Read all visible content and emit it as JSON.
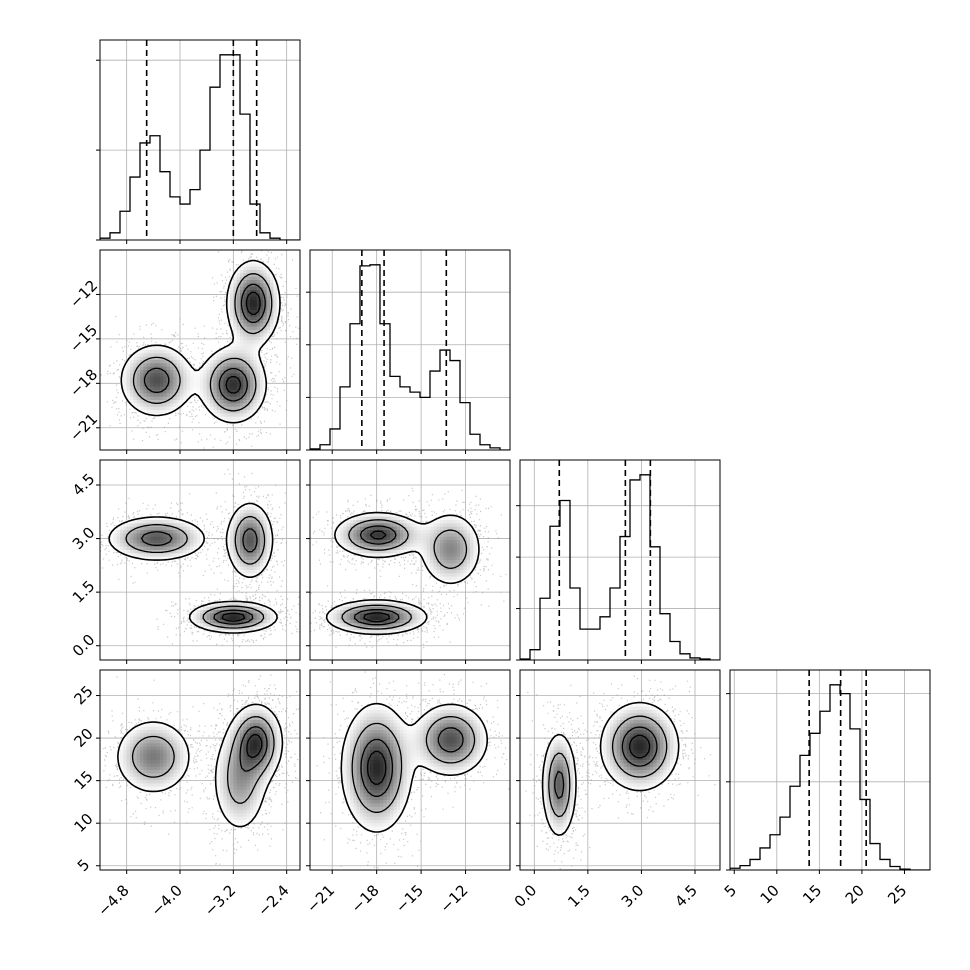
{
  "chart_data": {
    "type": "corner",
    "grid": true,
    "parameters": [
      {
        "range": [
          -5.2,
          -2.2
        ],
        "ticks": [
          -4.8,
          -4.0,
          -3.2,
          -2.4
        ],
        "tick_labels": [
          "−4.8",
          "−4.0",
          "−3.2",
          "−2.4"
        ],
        "quantiles": [
          -4.5,
          -3.2,
          -2.85
        ],
        "hist_edges_start": -5.2,
        "hist_bin_width": 0.15,
        "hist_counts": [
          1,
          4,
          16,
          35,
          54,
          58,
          38,
          24,
          20,
          28,
          50,
          85,
          103,
          103,
          70,
          20,
          4,
          1,
          0,
          0
        ]
      },
      {
        "range": [
          -22.5,
          -9.0
        ],
        "ticks": [
          -21,
          -18,
          -15,
          -12
        ],
        "tick_labels": [
          "−21",
          "−18",
          "−15",
          "−12"
        ],
        "quantiles": [
          -19.0,
          -17.5,
          -13.3
        ],
        "hist_edges_start": -22.5,
        "hist_bin_width": 0.675,
        "hist_counts": [
          1,
          5,
          20,
          60,
          120,
          175,
          176,
          120,
          70,
          60,
          55,
          50,
          75,
          95,
          85,
          45,
          15,
          5,
          2,
          0
        ]
      },
      {
        "range": [
          -0.4,
          5.2
        ],
        "ticks": [
          0.0,
          1.5,
          3.0,
          4.5
        ],
        "tick_labels": [
          "0.0",
          "1.5",
          "3.0",
          "4.5"
        ],
        "quantiles": [
          0.7,
          2.55,
          3.25
        ],
        "hist_edges_start": -0.4,
        "hist_bin_width": 0.28,
        "hist_counts": [
          1,
          10,
          60,
          130,
          155,
          70,
          30,
          30,
          42,
          70,
          120,
          175,
          180,
          110,
          45,
          18,
          6,
          2,
          1,
          0
        ]
      },
      {
        "range": [
          4.5,
          28.0
        ],
        "ticks": [
          5,
          10,
          15,
          20,
          25
        ],
        "tick_labels": [
          "5",
          "10",
          "15",
          "20",
          "25"
        ],
        "quantiles": [
          13.8,
          17.5,
          20.5
        ],
        "hist_edges_start": 4.5,
        "hist_bin_width": 1.175,
        "hist_counts": [
          2,
          5,
          12,
          25,
          40,
          60,
          95,
          130,
          155,
          180,
          210,
          200,
          160,
          80,
          30,
          12,
          4,
          1,
          0,
          0
        ]
      }
    ],
    "hist_ticks_y": [
      [
        0,
        50,
        100
      ],
      [
        0,
        50,
        100,
        150
      ],
      [
        0,
        50,
        100,
        150
      ],
      [
        0,
        100,
        200
      ]
    ],
    "pairs": [
      {
        "row": 1,
        "col": 0,
        "modes": [
          {
            "cx": -4.35,
            "cy": -17.8,
            "sx": 0.28,
            "sy": 1.25,
            "angle": 25,
            "density": 1.0
          },
          {
            "cx": -3.2,
            "cy": -18.1,
            "sx": 0.25,
            "sy": 1.3,
            "angle": 30,
            "density": 1.15
          },
          {
            "cx": -2.9,
            "cy": -12.6,
            "sx": 0.2,
            "sy": 1.45,
            "angle": -10,
            "density": 1.2
          }
        ]
      },
      {
        "row": 2,
        "col": 0,
        "modes": [
          {
            "cx": -4.35,
            "cy": 3.0,
            "sx": 0.38,
            "sy": 0.32,
            "angle": -25,
            "density": 1.0
          },
          {
            "cx": -3.2,
            "cy": 0.8,
            "sx": 0.33,
            "sy": 0.22,
            "angle": 0,
            "density": 1.25
          },
          {
            "cx": -2.95,
            "cy": 2.95,
            "sx": 0.18,
            "sy": 0.55,
            "angle": 5,
            "density": 1.0
          }
        ]
      },
      {
        "row": 2,
        "col": 1,
        "modes": [
          {
            "cx": -17.9,
            "cy": 3.1,
            "sx": 1.5,
            "sy": 0.32,
            "angle": 0,
            "density": 1.2
          },
          {
            "cx": -18.0,
            "cy": 0.8,
            "sx": 1.7,
            "sy": 0.24,
            "angle": 0,
            "density": 1.3
          },
          {
            "cx": -13.0,
            "cy": 2.7,
            "sx": 1.1,
            "sy": 0.55,
            "angle": -15,
            "density": 0.8
          }
        ]
      },
      {
        "row": 3,
        "col": 0,
        "modes": [
          {
            "cx": -4.4,
            "cy": 17.8,
            "sx": 0.3,
            "sy": 2.3,
            "angle": 30,
            "density": 1.0
          },
          {
            "cx": -3.1,
            "cy": 15.0,
            "sx": 0.22,
            "sy": 3.3,
            "angle": 0,
            "density": 0.8
          },
          {
            "cx": -2.85,
            "cy": 19.5,
            "sx": 0.2,
            "sy": 2.3,
            "angle": 0,
            "density": 1.3
          }
        ]
      },
      {
        "row": 3,
        "col": 1,
        "modes": [
          {
            "cx": -18.0,
            "cy": 16.5,
            "sx": 1.2,
            "sy": 3.8,
            "angle": 0,
            "density": 1.2
          },
          {
            "cx": -13.0,
            "cy": 19.8,
            "sx": 1.3,
            "sy": 2.2,
            "angle": 0,
            "density": 1.0
          }
        ]
      },
      {
        "row": 3,
        "col": 2,
        "modes": [
          {
            "cx": 0.7,
            "cy": 14.5,
            "sx": 0.25,
            "sy": 3.2,
            "angle": 10,
            "density": 1.0
          },
          {
            "cx": 2.95,
            "cy": 19.0,
            "sx": 0.55,
            "sy": 2.6,
            "angle": 0,
            "density": 1.3
          }
        ]
      }
    ]
  }
}
